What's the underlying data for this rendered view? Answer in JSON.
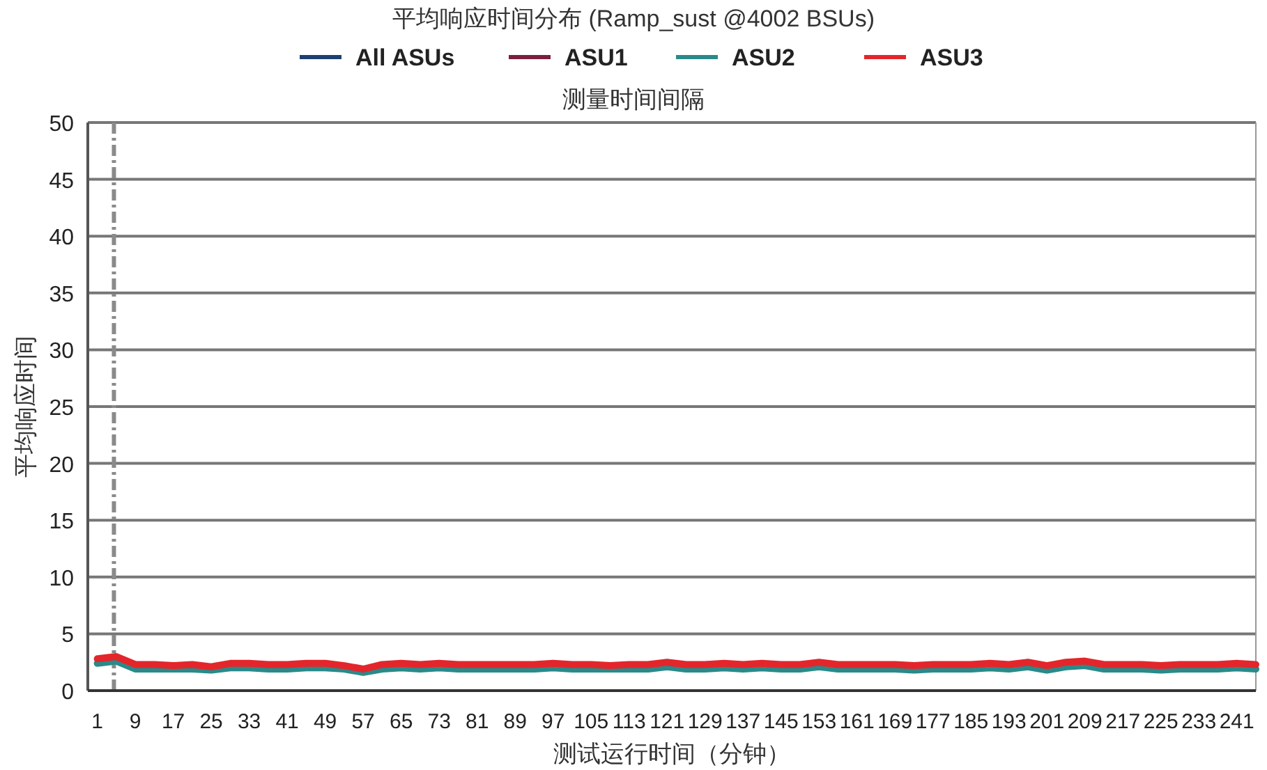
{
  "chart_data": {
    "type": "line",
    "title": "平均响应时间分布 (Ramp_sust @4002 BSUs)",
    "xlabel": "测试运行时间（分钟）",
    "ylabel": "平均响应时间",
    "x": [
      1,
      5,
      9,
      13,
      17,
      21,
      25,
      29,
      33,
      37,
      41,
      45,
      49,
      53,
      57,
      61,
      65,
      69,
      73,
      77,
      81,
      85,
      89,
      93,
      97,
      101,
      105,
      109,
      113,
      117,
      121,
      125,
      129,
      133,
      137,
      141,
      145,
      149,
      153,
      157,
      161,
      165,
      169,
      173,
      177,
      181,
      185,
      189,
      193,
      197,
      201,
      205,
      209,
      213,
      217,
      221,
      225,
      229,
      233,
      237,
      241,
      245
    ],
    "series": [
      {
        "name": "All ASUs",
        "color": "#1f3f73",
        "values": [
          null,
          null,
          null,
          null,
          null,
          null,
          null,
          null,
          null,
          null,
          null,
          null,
          null,
          null,
          null,
          null,
          null,
          null,
          null,
          null,
          null,
          null,
          null,
          null,
          null,
          null,
          null,
          null,
          null,
          null,
          null,
          null,
          null,
          null,
          null,
          null,
          null,
          null,
          null,
          null,
          null,
          null,
          null,
          null,
          null,
          null,
          null,
          null,
          null,
          null,
          null,
          null,
          null,
          null,
          null,
          null,
          null,
          null,
          null,
          null,
          null,
          null
        ]
      },
      {
        "name": "ASU1",
        "color": "#7a1f3d",
        "values": [
          null,
          null,
          null,
          null,
          null,
          null,
          null,
          null,
          null,
          null,
          null,
          null,
          null,
          null,
          null,
          null,
          null,
          null,
          null,
          null,
          null,
          null,
          null,
          null,
          null,
          null,
          null,
          null,
          null,
          null,
          null,
          null,
          null,
          null,
          null,
          null,
          null,
          null,
          null,
          null,
          null,
          null,
          null,
          null,
          null,
          null,
          null,
          null,
          null,
          null,
          null,
          null,
          null,
          null,
          null,
          null,
          null,
          null,
          null,
          null,
          null,
          null
        ]
      },
      {
        "name": "ASU2",
        "color": "#2a8a8a",
        "values": [
          2.4,
          2.6,
          1.9,
          1.9,
          1.9,
          1.9,
          1.8,
          2.0,
          2.0,
          1.9,
          1.9,
          2.0,
          2.0,
          1.9,
          1.6,
          1.9,
          2.0,
          1.9,
          2.0,
          1.9,
          1.9,
          1.9,
          1.9,
          1.9,
          2.0,
          1.9,
          1.9,
          1.9,
          1.9,
          1.9,
          2.1,
          1.9,
          1.9,
          2.0,
          1.9,
          2.0,
          1.9,
          1.9,
          2.1,
          1.9,
          1.9,
          1.9,
          1.9,
          1.8,
          1.9,
          1.9,
          1.9,
          2.0,
          1.9,
          2.1,
          1.8,
          2.1,
          2.2,
          1.9,
          1.9,
          1.9,
          1.8,
          1.9,
          1.9,
          1.9,
          2.0,
          1.9
        ]
      },
      {
        "name": "ASU3",
        "color": "#e3262b",
        "values": [
          2.8,
          3.0,
          2.3,
          2.3,
          2.2,
          2.3,
          2.1,
          2.4,
          2.4,
          2.3,
          2.3,
          2.4,
          2.4,
          2.2,
          1.9,
          2.3,
          2.4,
          2.3,
          2.4,
          2.3,
          2.3,
          2.3,
          2.3,
          2.3,
          2.4,
          2.3,
          2.3,
          2.2,
          2.3,
          2.3,
          2.5,
          2.3,
          2.3,
          2.4,
          2.3,
          2.4,
          2.3,
          2.3,
          2.5,
          2.3,
          2.3,
          2.3,
          2.3,
          2.2,
          2.3,
          2.3,
          2.3,
          2.4,
          2.3,
          2.5,
          2.2,
          2.5,
          2.6,
          2.3,
          2.3,
          2.3,
          2.2,
          2.3,
          2.3,
          2.3,
          2.4,
          2.3
        ]
      }
    ],
    "xlim": [
      -1,
      245
    ],
    "xticks": [
      1,
      9,
      17,
      25,
      33,
      41,
      49,
      57,
      65,
      73,
      81,
      89,
      97,
      105,
      113,
      121,
      129,
      137,
      145,
      153,
      161,
      169,
      177,
      185,
      193,
      201,
      209,
      217,
      225,
      233,
      241
    ],
    "ylim": [
      0,
      50
    ],
    "yticks": [
      0,
      5,
      10,
      15,
      20,
      25,
      30,
      35,
      40,
      45,
      50
    ],
    "ref_lines": [
      {
        "axis": "x",
        "value": 4.5,
        "color": "#8a8a8a",
        "line_style": "dashdot"
      }
    ],
    "annotations": [
      "测量时间间隔"
    ],
    "grid": "y",
    "legend": "top"
  }
}
